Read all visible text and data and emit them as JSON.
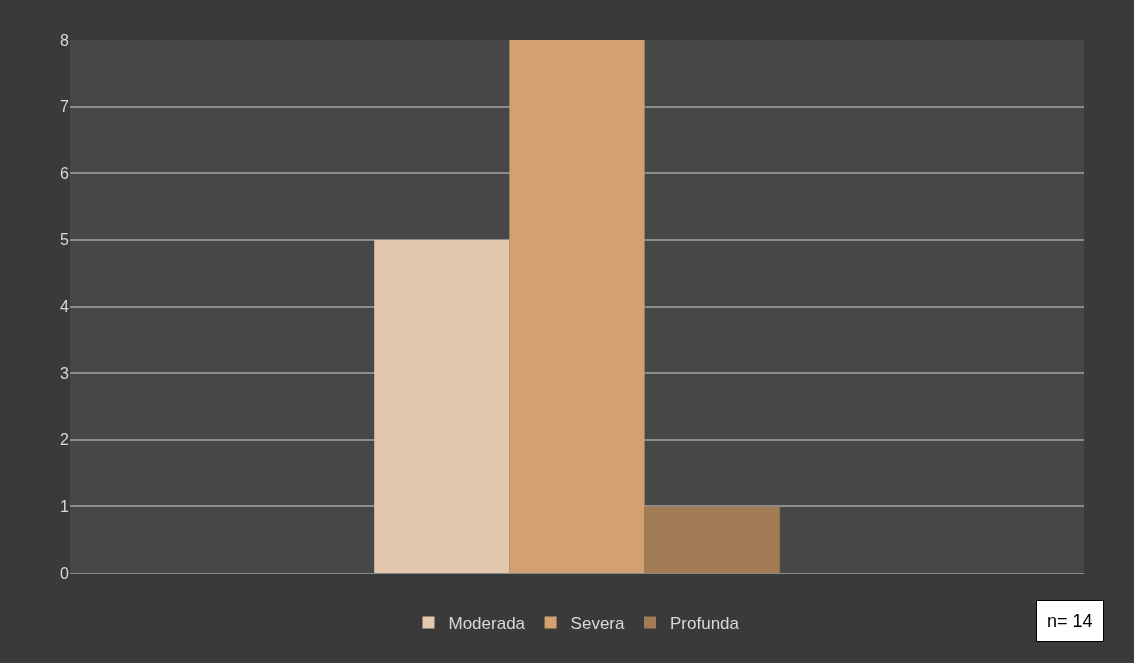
{
  "chart_data": {
    "type": "bar",
    "categories": [
      null
    ],
    "series": [
      {
        "name": "Moderada",
        "color": "#e3c7ae",
        "values": [
          5
        ]
      },
      {
        "name": "Severa",
        "color": "#d2a16f",
        "values": [
          8
        ]
      },
      {
        "name": "Profunda",
        "color": "#a27c55",
        "values": [
          1
        ]
      }
    ],
    "ylim": [
      0,
      8
    ],
    "yticks": [
      0,
      1,
      2,
      3,
      4,
      5,
      6,
      7,
      8
    ],
    "grid": "y",
    "legend": "bottom",
    "annotations": [
      "n= 14"
    ]
  }
}
